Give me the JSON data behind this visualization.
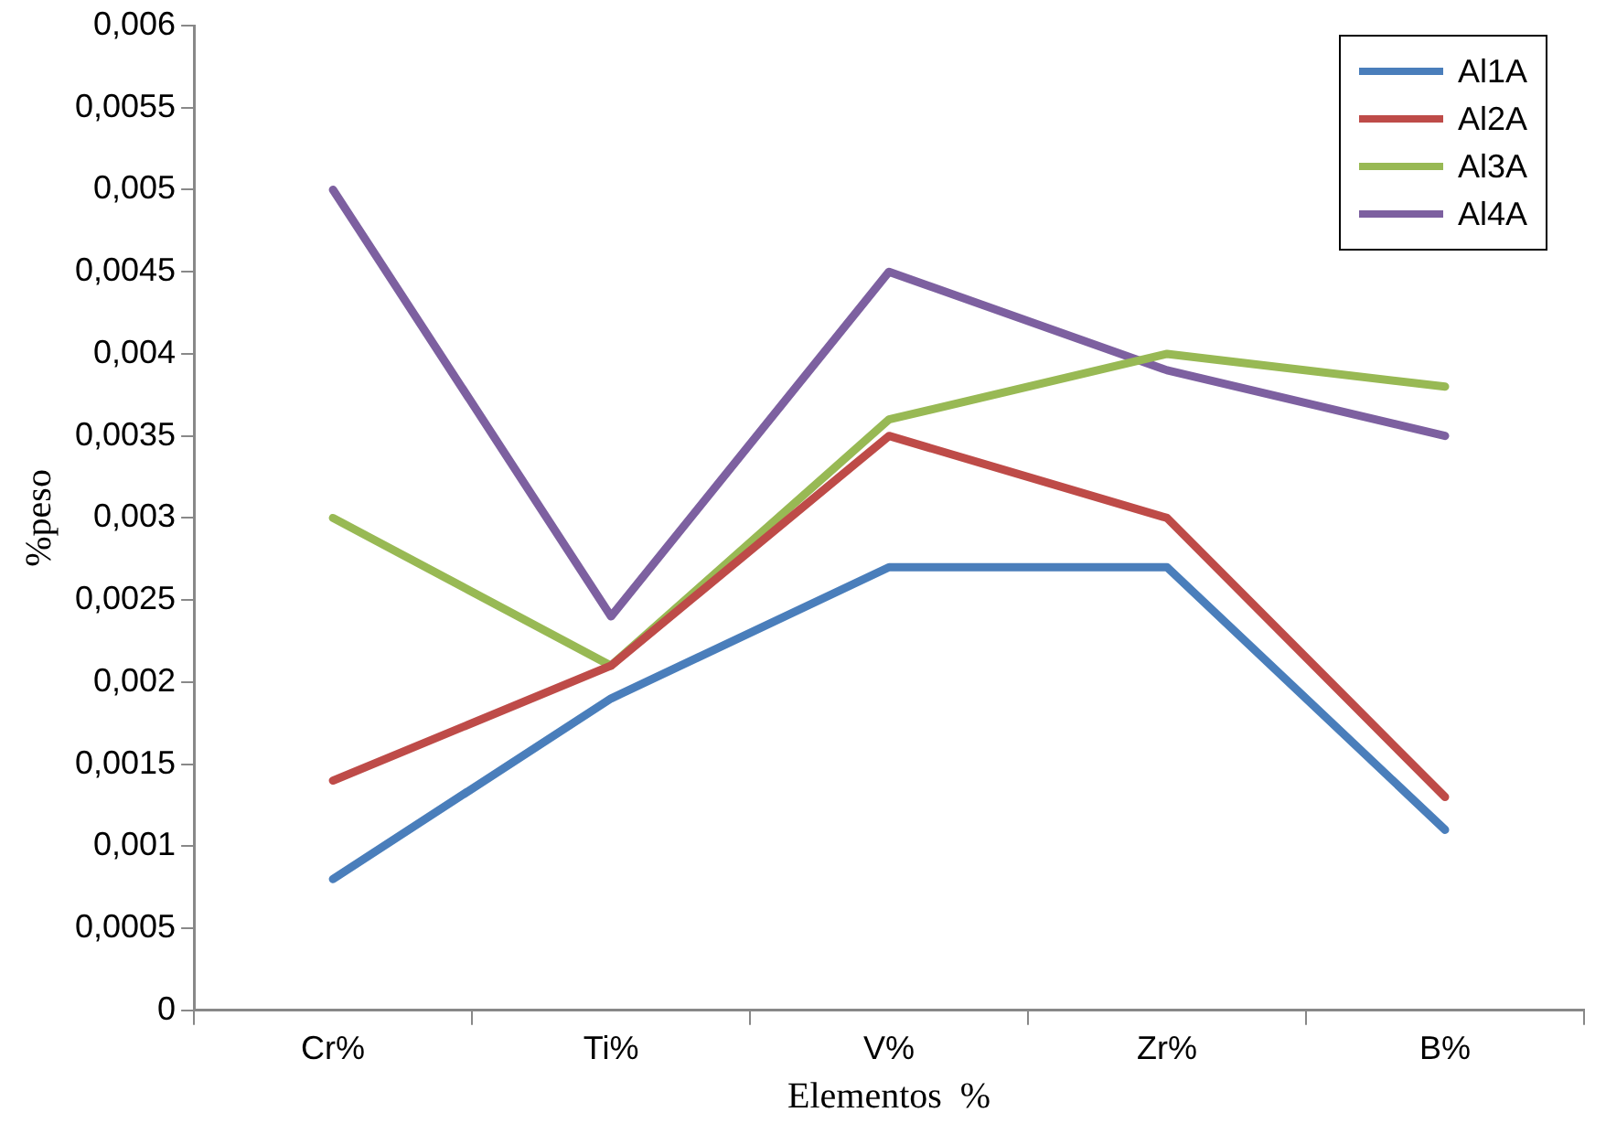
{
  "chart_data": {
    "type": "line",
    "xlabel": "Elementos  %",
    "ylabel": "%peso",
    "categories": [
      "Cr%",
      "Ti%",
      "V%",
      "Zr%",
      "B%"
    ],
    "series": [
      {
        "name": "Al1A",
        "color": "#4a7ebb",
        "values": [
          0.0008,
          0.0019,
          0.0027,
          0.0027,
          0.0011
        ]
      },
      {
        "name": "Al2A",
        "color": "#be4b48",
        "values": [
          0.0014,
          0.0021,
          0.0035,
          0.003,
          0.0013
        ]
      },
      {
        "name": "Al3A",
        "color": "#98b954",
        "values": [
          0.003,
          0.0021,
          0.0036,
          0.004,
          0.0038
        ]
      },
      {
        "name": "Al4A",
        "color": "#7d60a0",
        "values": [
          0.005,
          0.0024,
          0.0045,
          0.0039,
          0.0035
        ]
      }
    ],
    "ylim": [
      0,
      0.006
    ],
    "yticks": [
      0,
      {
        "value": 0.0005,
        "label": "0,0005"
      },
      {
        "value": 0.001,
        "label": "0,001"
      },
      {
        "value": 0.0015,
        "label": "0,0015"
      },
      {
        "value": 0.002,
        "label": "0,002"
      },
      {
        "value": 0.0025,
        "label": "0,0025"
      },
      {
        "value": 0.003,
        "label": "0,003"
      },
      {
        "value": 0.0035,
        "label": "0,0035"
      },
      {
        "value": 0.004,
        "label": "0,004"
      },
      {
        "value": 0.0045,
        "label": "0,0045"
      },
      {
        "value": 0.005,
        "label": "0,005"
      },
      {
        "value": 0.0055,
        "label": "0,0055"
      },
      {
        "value": 0.006,
        "label": "0,006"
      }
    ],
    "grid": false,
    "legend": "top right",
    "marker": "none",
    "line_style": "solid"
  }
}
